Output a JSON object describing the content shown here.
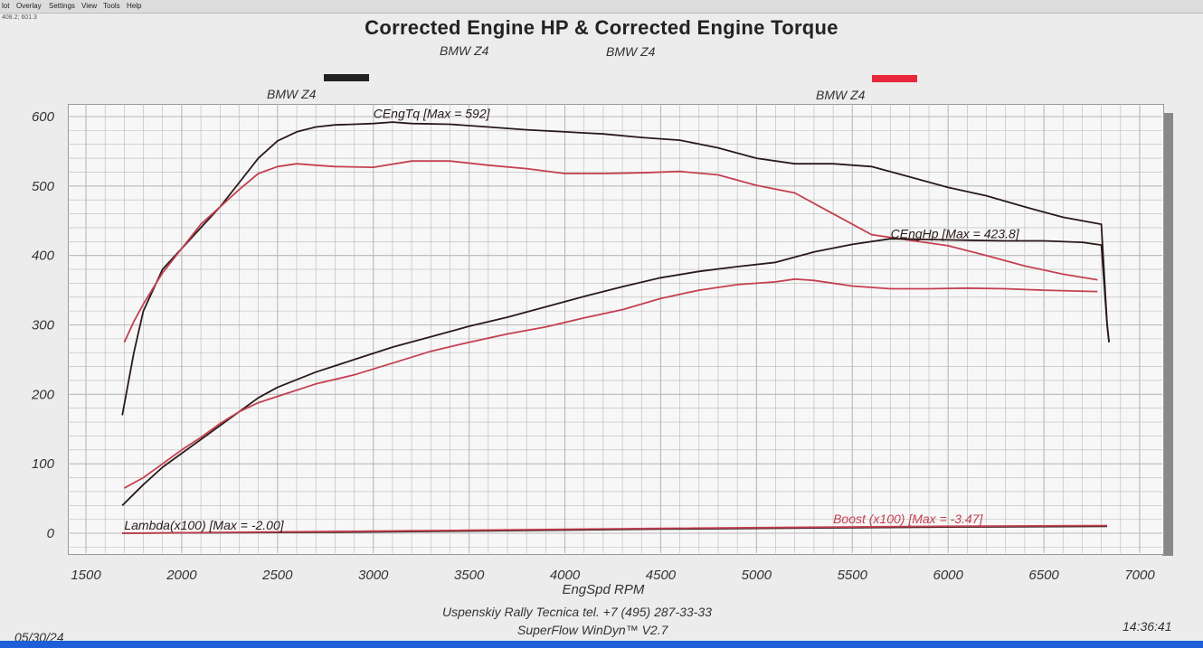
{
  "menu": [
    "lot",
    "Overlay",
    "Settings",
    "View",
    "Tools",
    "Help"
  ],
  "coord_readout": "408.2; 601.3",
  "title": "Corrected Engine HP & Corrected Engine Torque",
  "subtitles": [
    "BMW Z4",
    "BMW Z4"
  ],
  "legend": [
    {
      "label": "BMW Z4",
      "color": "#222222"
    },
    {
      "label": "BMW Z4",
      "color": "#e8283c"
    }
  ],
  "footer": {
    "date": "05/30/24",
    "time": "14:36:41",
    "company": "Uspenskiy Rally Tecnica   tel. +7 (495) 287-33-33",
    "software": "SuperFlow WinDyn™ V2.7"
  },
  "colors": {
    "run1": "#2a1a1a",
    "run2": "#c44050",
    "grid": "#b8b8b8"
  },
  "chart_data": {
    "type": "line",
    "title": "Corrected Engine HP & Corrected Engine Torque",
    "xlabel": "EngSpd  RPM",
    "ylabel": "",
    "xlim": [
      1500,
      7000
    ],
    "ylim": [
      0,
      600
    ],
    "x_ticks": [
      1500,
      2000,
      2500,
      3000,
      3500,
      4000,
      4500,
      5000,
      5500,
      6000,
      6500,
      7000
    ],
    "y_ticks": [
      0,
      100,
      200,
      300,
      400,
      500,
      600
    ],
    "annotations": [
      {
        "text": "CEngTq [Max = 592]",
        "x": 3000,
        "y": 598
      },
      {
        "text": "CEngHp [Max = 423.8]",
        "x": 5700,
        "y": 425
      },
      {
        "text": "Lambda(x100) [Max = -2.00]",
        "x": 1700,
        "y": 5
      },
      {
        "text": "Boost (x100) [Max = -3.47]",
        "x": 5400,
        "y": 14
      }
    ],
    "series": [
      {
        "name": "CEngTq BMW Z4 (run 1)",
        "color": "#2a1a1a",
        "x": [
          1690,
          1750,
          1800,
          1900,
          2000,
          2100,
          2200,
          2300,
          2400,
          2500,
          2600,
          2700,
          2800,
          2900,
          3000,
          3100,
          3200,
          3400,
          3600,
          3800,
          4000,
          4200,
          4400,
          4600,
          4800,
          5000,
          5200,
          5400,
          5600,
          5800,
          6000,
          6200,
          6400,
          6600,
          6800,
          6830,
          6840
        ],
        "y": [
          170,
          260,
          320,
          380,
          410,
          440,
          470,
          505,
          540,
          565,
          578,
          585,
          588,
          589,
          590,
          592,
          590,
          589,
          585,
          581,
          578,
          575,
          570,
          566,
          555,
          540,
          532,
          532,
          528,
          513,
          498,
          486,
          470,
          455,
          445,
          300,
          275
        ]
      },
      {
        "name": "CEngTq BMW Z4 (run 2)",
        "color": "#c44050",
        "x": [
          1700,
          1750,
          1800,
          1900,
          2000,
          2100,
          2200,
          2300,
          2400,
          2500,
          2600,
          2700,
          2800,
          3000,
          3200,
          3400,
          3600,
          3800,
          4000,
          4200,
          4400,
          4600,
          4800,
          5000,
          5200,
          5400,
          5600,
          5800,
          6000,
          6200,
          6400,
          6600,
          6780
        ],
        "y": [
          275,
          305,
          330,
          375,
          410,
          445,
          470,
          495,
          518,
          528,
          532,
          530,
          528,
          527,
          536,
          536,
          530,
          525,
          518,
          518,
          519,
          521,
          516,
          501,
          490,
          460,
          430,
          422,
          414,
          400,
          385,
          373,
          365
        ]
      },
      {
        "name": "CEngHp BMW Z4 (run 1)",
        "color": "#2a1a1a",
        "x": [
          1690,
          1800,
          1900,
          2000,
          2100,
          2200,
          2300,
          2400,
          2500,
          2700,
          2900,
          3100,
          3300,
          3500,
          3700,
          3900,
          4100,
          4300,
          4500,
          4700,
          4900,
          5100,
          5300,
          5500,
          5700,
          5900,
          6100,
          6300,
          6500,
          6700,
          6800,
          6830,
          6840
        ],
        "y": [
          40,
          70,
          95,
          115,
          135,
          155,
          175,
          195,
          210,
          232,
          250,
          268,
          283,
          298,
          311,
          326,
          341,
          355,
          368,
          377,
          384,
          390,
          405,
          416,
          424,
          423,
          422,
          421,
          421,
          419,
          415,
          300,
          275
        ]
      },
      {
        "name": "CEngHp BMW Z4 (run 2)",
        "color": "#c44050",
        "x": [
          1700,
          1800,
          1900,
          2000,
          2100,
          2200,
          2300,
          2400,
          2500,
          2700,
          2900,
          3100,
          3300,
          3500,
          3700,
          3900,
          4100,
          4300,
          4500,
          4700,
          4900,
          5100,
          5200,
          5300,
          5500,
          5700,
          5900,
          6100,
          6300,
          6500,
          6780
        ],
        "y": [
          65,
          80,
          100,
          120,
          138,
          158,
          175,
          188,
          197,
          215,
          228,
          245,
          262,
          275,
          287,
          297,
          310,
          322,
          338,
          350,
          358,
          362,
          366,
          364,
          356,
          352,
          352,
          353,
          352,
          350,
          348
        ]
      },
      {
        "name": "Lambda(x100)",
        "color": "#2a1a1a",
        "x": [
          1690,
          3000,
          4500,
          6000,
          6830
        ],
        "y": [
          0,
          2,
          6,
          9,
          10
        ]
      },
      {
        "name": "Boost (x100)",
        "color": "#c44050",
        "x": [
          1690,
          3000,
          4500,
          6000,
          6830
        ],
        "y": [
          0,
          3,
          7,
          10,
          11
        ]
      }
    ]
  }
}
